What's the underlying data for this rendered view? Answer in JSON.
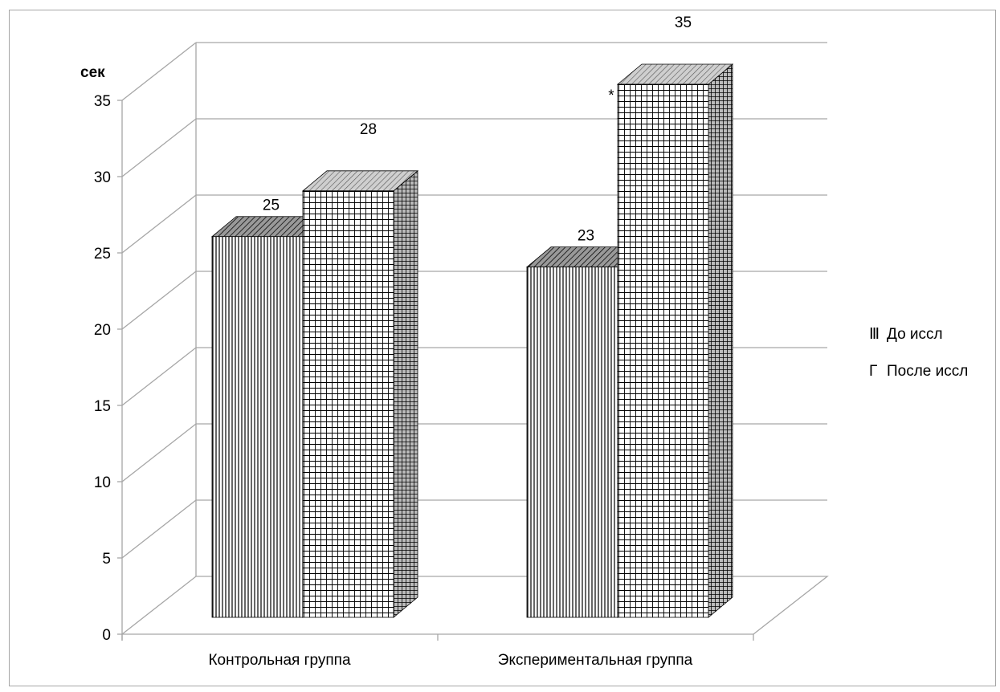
{
  "chart_data": {
    "type": "bar",
    "title": "",
    "ylabel": "сек",
    "xlabel": "",
    "ylim": [
      0,
      35
    ],
    "yticks": [
      0,
      5,
      10,
      15,
      20,
      25,
      30,
      35
    ],
    "grid": true,
    "categories": [
      "Контрольная группа",
      "Экспериментальная группа"
    ],
    "series": [
      {
        "name": "До иссл",
        "values": [
          25,
          23
        ],
        "pattern": "vertical-lines"
      },
      {
        "name": "После иссл",
        "values": [
          28,
          35
        ],
        "pattern": "grid"
      }
    ],
    "data_labels": [
      [
        "25",
        "23"
      ],
      [
        "28",
        "35"
      ]
    ],
    "annotations": [
      {
        "category": "Экспериментальная группа",
        "series": "После иссл",
        "text": "*"
      }
    ],
    "legend_position": "right",
    "legend_marker_glyphs": [
      "Ⅲ",
      "Г"
    ],
    "style": "3d-clustered-column",
    "colors": {
      "frame": "#a6a6a6",
      "grid": "#a6a6a6",
      "bar_stroke": "#000000",
      "bar_fill": "#ffffff"
    }
  }
}
